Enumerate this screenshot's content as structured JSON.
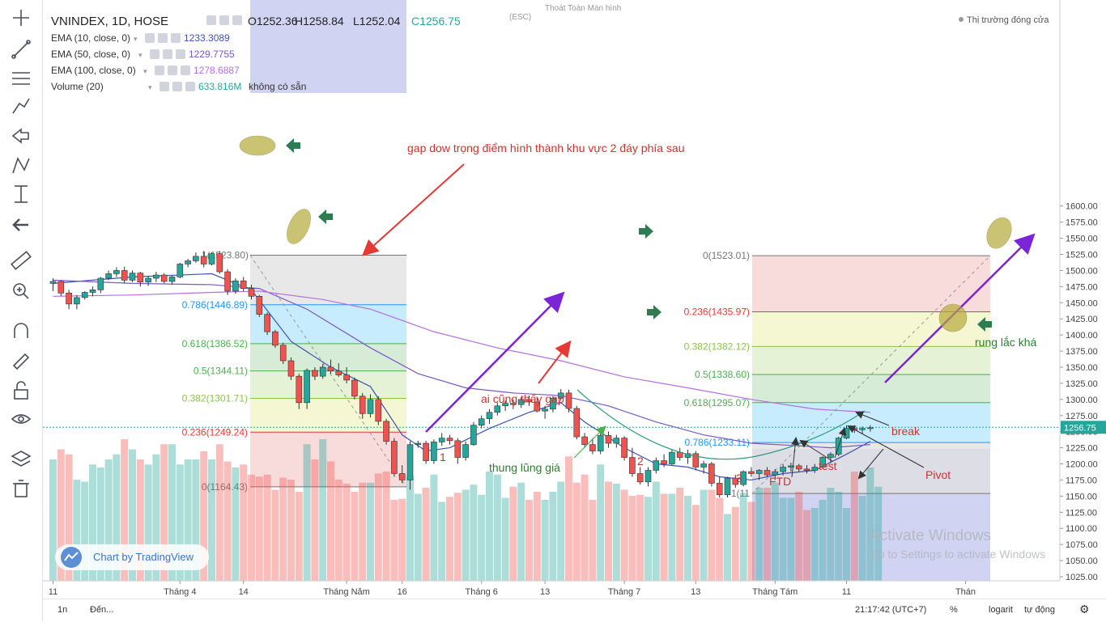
{
  "colors": {
    "up": "#26a69a",
    "down": "#ef5350",
    "ema10": "#3f51b5",
    "ema50": "#7b58c4",
    "ema100": "#b56fe0",
    "accent": "#7b24d8"
  },
  "header": {
    "symbol": "VNINDEX, 1D, HOSE",
    "open": "O1252.36",
    "high": "H1258.84",
    "low": "L1252.04",
    "close": "C1256.75",
    "market_status": "Thị trường đóng cửa",
    "fullscreen_hint": "Thoát Toàn Màn hình",
    "fullscreen_key": "(ESC)",
    "indicators": [
      {
        "label": "EMA (10, close, 0)",
        "value": "1233.3089",
        "color": "#3f51b5"
      },
      {
        "label": "EMA (50, close, 0)",
        "value": "1229.7755",
        "color": "#7b58c4"
      },
      {
        "label": "EMA (100, close, 0)",
        "value": "1278.6887",
        "color": "#b56fe0"
      },
      {
        "label": "Volume (20)",
        "value": "633.816M",
        "extra": "không có sẵn",
        "color": "#26a69a"
      }
    ]
  },
  "chart_data": {
    "type": "candlestick",
    "ylim": [
      1015,
      1615
    ],
    "y_ticks": [
      1025,
      1050,
      1075,
      1100,
      1125,
      1150,
      1175,
      1200,
      1225,
      1250,
      1275,
      1300,
      1325,
      1350,
      1375,
      1400,
      1425,
      1450,
      1475,
      1500,
      1525,
      1550,
      1575,
      1600
    ],
    "last_price": "1256.75",
    "x_ticks": [
      "11",
      "Tháng 4",
      "14",
      "Tháng Năm",
      "16",
      "Tháng 6",
      "13",
      "Tháng 7",
      "13",
      "Tháng Tám",
      "11",
      "Thán"
    ],
    "x_tick_index": [
      0,
      16,
      24,
      37,
      44,
      54,
      62,
      72,
      81,
      91,
      100,
      115
    ],
    "candles": [
      [
        1480,
        1488,
        1468,
        1483
      ],
      [
        1483,
        1485,
        1460,
        1465
      ],
      [
        1465,
        1470,
        1440,
        1448
      ],
      [
        1448,
        1462,
        1440,
        1458
      ],
      [
        1458,
        1468,
        1455,
        1466
      ],
      [
        1466,
        1475,
        1460,
        1470
      ],
      [
        1470,
        1490,
        1465,
        1488
      ],
      [
        1488,
        1500,
        1485,
        1495
      ],
      [
        1495,
        1505,
        1490,
        1500
      ],
      [
        1500,
        1506,
        1480,
        1485
      ],
      [
        1485,
        1500,
        1482,
        1496
      ],
      [
        1496,
        1498,
        1475,
        1482
      ],
      [
        1482,
        1492,
        1476,
        1488
      ],
      [
        1488,
        1498,
        1482,
        1493
      ],
      [
        1493,
        1496,
        1480,
        1483
      ],
      [
        1483,
        1492,
        1478,
        1490
      ],
      [
        1490,
        1512,
        1488,
        1510
      ],
      [
        1510,
        1518,
        1505,
        1515
      ],
      [
        1515,
        1528,
        1512,
        1522
      ],
      [
        1522,
        1530,
        1505,
        1510
      ],
      [
        1510,
        1528,
        1508,
        1526
      ],
      [
        1526,
        1530,
        1495,
        1498
      ],
      [
        1498,
        1502,
        1462,
        1468
      ],
      [
        1468,
        1488,
        1464,
        1484
      ],
      [
        1484,
        1490,
        1468,
        1472
      ],
      [
        1472,
        1478,
        1455,
        1460
      ],
      [
        1460,
        1462,
        1428,
        1432
      ],
      [
        1432,
        1435,
        1400,
        1405
      ],
      [
        1405,
        1408,
        1380,
        1384
      ],
      [
        1384,
        1388,
        1355,
        1360
      ],
      [
        1360,
        1365,
        1330,
        1336
      ],
      [
        1336,
        1340,
        1285,
        1295
      ],
      [
        1295,
        1348,
        1285,
        1345
      ],
      [
        1345,
        1350,
        1330,
        1336
      ],
      [
        1336,
        1355,
        1332,
        1350
      ],
      [
        1350,
        1362,
        1340,
        1344
      ],
      [
        1344,
        1356,
        1335,
        1338
      ],
      [
        1338,
        1350,
        1325,
        1330
      ],
      [
        1330,
        1334,
        1300,
        1305
      ],
      [
        1305,
        1310,
        1270,
        1278
      ],
      [
        1278,
        1308,
        1272,
        1300
      ],
      [
        1300,
        1305,
        1260,
        1266
      ],
      [
        1266,
        1270,
        1230,
        1235
      ],
      [
        1235,
        1240,
        1180,
        1185
      ],
      [
        1185,
        1198,
        1170,
        1175
      ],
      [
        1175,
        1235,
        1160,
        1230
      ],
      [
        1230,
        1236,
        1225,
        1232
      ],
      [
        1232,
        1236,
        1200,
        1205
      ],
      [
        1205,
        1238,
        1200,
        1234
      ],
      [
        1234,
        1248,
        1228,
        1240
      ],
      [
        1240,
        1245,
        1230,
        1236
      ],
      [
        1236,
        1240,
        1200,
        1210
      ],
      [
        1210,
        1235,
        1205,
        1230
      ],
      [
        1230,
        1265,
        1228,
        1260
      ],
      [
        1260,
        1275,
        1255,
        1270
      ],
      [
        1270,
        1285,
        1262,
        1280
      ],
      [
        1280,
        1295,
        1275,
        1290
      ],
      [
        1290,
        1298,
        1282,
        1294
      ],
      [
        1294,
        1300,
        1285,
        1292
      ],
      [
        1292,
        1303,
        1287,
        1300
      ],
      [
        1300,
        1306,
        1290,
        1296
      ],
      [
        1296,
        1304,
        1280,
        1282
      ],
      [
        1282,
        1290,
        1270,
        1285
      ],
      [
        1285,
        1305,
        1280,
        1302
      ],
      [
        1302,
        1316,
        1298,
        1310
      ],
      [
        1310,
        1315,
        1280,
        1286
      ],
      [
        1286,
        1290,
        1238,
        1242
      ],
      [
        1242,
        1248,
        1225,
        1230
      ],
      [
        1230,
        1240,
        1215,
        1220
      ],
      [
        1220,
        1248,
        1215,
        1244
      ],
      [
        1244,
        1250,
        1225,
        1232
      ],
      [
        1232,
        1245,
        1225,
        1240
      ],
      [
        1240,
        1243,
        1205,
        1210
      ],
      [
        1210,
        1225,
        1180,
        1185
      ],
      [
        1185,
        1195,
        1168,
        1172
      ],
      [
        1172,
        1195,
        1165,
        1190
      ],
      [
        1190,
        1210,
        1185,
        1205
      ],
      [
        1205,
        1215,
        1195,
        1200
      ],
      [
        1200,
        1222,
        1198,
        1218
      ],
      [
        1218,
        1225,
        1205,
        1210
      ],
      [
        1210,
        1222,
        1200,
        1216
      ],
      [
        1216,
        1220,
        1190,
        1195
      ],
      [
        1195,
        1205,
        1185,
        1200
      ],
      [
        1200,
        1203,
        1165,
        1170
      ],
      [
        1170,
        1180,
        1148,
        1152
      ],
      [
        1152,
        1180,
        1148,
        1178
      ],
      [
        1178,
        1183,
        1163,
        1168
      ],
      [
        1168,
        1190,
        1165,
        1188
      ],
      [
        1188,
        1195,
        1180,
        1185
      ],
      [
        1185,
        1192,
        1175,
        1190
      ],
      [
        1190,
        1195,
        1180,
        1183
      ],
      [
        1183,
        1192,
        1175,
        1188
      ],
      [
        1188,
        1200,
        1182,
        1195
      ],
      [
        1195,
        1202,
        1188,
        1197
      ],
      [
        1197,
        1200,
        1188,
        1192
      ],
      [
        1192,
        1198,
        1185,
        1190
      ],
      [
        1190,
        1200,
        1186,
        1195
      ],
      [
        1195,
        1212,
        1192,
        1210
      ],
      [
        1210,
        1218,
        1202,
        1215
      ],
      [
        1215,
        1242,
        1212,
        1240
      ],
      [
        1240,
        1260,
        1238,
        1255
      ],
      [
        1255,
        1260,
        1248,
        1253
      ],
      [
        1253,
        1258,
        1246,
        1255
      ],
      [
        1255,
        1260,
        1250,
        1256
      ]
    ],
    "ema_lines": [
      {
        "name": "EMA 10",
        "color": "#3f51b5",
        "points": [
          [
            0,
            1480
          ],
          [
            10,
            1490
          ],
          [
            20,
            1495
          ],
          [
            25,
            1470
          ],
          [
            30,
            1390
          ],
          [
            35,
            1350
          ],
          [
            40,
            1320
          ],
          [
            44,
            1245
          ],
          [
            47,
            1220
          ],
          [
            50,
            1225
          ],
          [
            55,
            1255
          ],
          [
            60,
            1280
          ],
          [
            64,
            1295
          ],
          [
            67,
            1265
          ],
          [
            72,
            1225
          ],
          [
            76,
            1200
          ],
          [
            80,
            1195
          ],
          [
            84,
            1180
          ],
          [
            88,
            1175
          ],
          [
            92,
            1185
          ],
          [
            96,
            1190
          ],
          [
            100,
            1215
          ],
          [
            103,
            1235
          ]
        ]
      },
      {
        "name": "EMA 50",
        "color": "#7b58c4",
        "points": [
          [
            0,
            1485
          ],
          [
            10,
            1480
          ],
          [
            20,
            1478
          ],
          [
            26,
            1472
          ],
          [
            32,
            1440
          ],
          [
            40,
            1380
          ],
          [
            46,
            1340
          ],
          [
            52,
            1318
          ],
          [
            58,
            1310
          ],
          [
            64,
            1306
          ],
          [
            70,
            1290
          ],
          [
            76,
            1265
          ],
          [
            82,
            1245
          ],
          [
            88,
            1232
          ],
          [
            94,
            1228
          ],
          [
            98,
            1225
          ],
          [
            103,
            1230
          ]
        ]
      },
      {
        "name": "EMA 100",
        "color": "#b56fe0",
        "points": [
          [
            0,
            1460
          ],
          [
            10,
            1462
          ],
          [
            20,
            1466
          ],
          [
            26,
            1468
          ],
          [
            34,
            1455
          ],
          [
            40,
            1440
          ],
          [
            48,
            1405
          ],
          [
            56,
            1380
          ],
          [
            64,
            1360
          ],
          [
            72,
            1335
          ],
          [
            80,
            1318
          ],
          [
            88,
            1300
          ],
          [
            96,
            1285
          ],
          [
            103,
            1280
          ]
        ]
      }
    ],
    "volume": [
      120,
      130,
      125,
      100,
      98,
      115,
      112,
      120,
      125,
      140,
      130,
      120,
      115,
      125,
      135,
      135,
      115,
      120,
      120,
      128,
      120,
      135,
      118,
      112,
      115,
      105,
      103,
      105,
      90,
      102,
      100,
      88,
      135,
      120,
      140,
      118,
      100,
      96,
      88,
      97,
      97,
      106,
      108,
      80,
      81,
      104,
      86,
      92,
      105,
      78,
      83,
      87,
      90,
      95,
      85,
      108,
      105,
      82,
      93,
      97,
      80,
      88,
      80,
      88,
      98,
      123,
      97,
      105,
      80,
      115,
      98,
      96,
      90,
      84,
      85,
      83,
      98,
      86,
      86,
      92,
      84,
      75,
      90,
      90,
      82,
      66,
      73,
      87,
      78,
      92,
      92,
      97,
      82,
      82,
      88,
      70,
      72,
      80,
      92,
      88,
      72,
      108,
      84,
      112,
      93
    ]
  },
  "fib_left": {
    "levels": [
      {
        "ratio": "0.786(1446.89)",
        "price": 1446.89,
        "color": "#2196f3",
        "fill": "#b3e5fc"
      },
      {
        "ratio": "0.618(1386.52)",
        "price": 1386.52,
        "color": "#4caf50",
        "fill": "#c8e6c9"
      },
      {
        "ratio": "0.5(1344.11)",
        "price": 1344.11,
        "color": "#4caf50",
        "fill": "#dcedc8"
      },
      {
        "ratio": "0.382(1301.71)",
        "price": 1301.71,
        "color": "#8bc34a",
        "fill": "#f0f4c3"
      },
      {
        "ratio": "0.236(1249.24)",
        "price": 1249.24,
        "color": "#e53935",
        "fill": "#f5cfcf"
      },
      {
        "ratio": "0(1164.43)",
        "price": 1164.43,
        "color": "#757575"
      }
    ],
    "top_label": "1(1523.80)",
    "top_price": 1523.8
  },
  "fib_right": {
    "levels": [
      {
        "ratio": "0(1523.01)",
        "price": 1523.01,
        "color": "#757575",
        "fill": "#f5cfcf"
      },
      {
        "ratio": "0.236(1435.97)",
        "price": 1435.97,
        "color": "#e53935",
        "fill": "#f0f4c3"
      },
      {
        "ratio": "0.382(1382.12)",
        "price": 1382.12,
        "color": "#8bc34a",
        "fill": "#dcedc8"
      },
      {
        "ratio": "0.5(1338.60)",
        "price": 1338.6,
        "color": "#4caf50",
        "fill": "#c8e6c9"
      },
      {
        "ratio": "0.618(1295.07)",
        "price": 1295.07,
        "color": "#4caf50",
        "fill": "#b3e5fc"
      },
      {
        "ratio": "0.786(1233.11)",
        "price": 1233.11,
        "color": "#2196f3",
        "fill": "#e0e0e0"
      }
    ],
    "bottom_label": "1(11",
    "bottom_price": 1154
  },
  "annotations": {
    "gap_dow": "gap dow trọng điểm hình thành khu vực 2 đáy phía sau",
    "ai_cung": "ai cũng thấy gap",
    "thung_lung": "thung lũng giá",
    "rung_lac": "rung lắc khá",
    "ftd": "FTD",
    "test": "test",
    "break": "break",
    "pivot": "Pivot",
    "n1": "1",
    "n2": "2",
    "n3": "3"
  },
  "watermark": {
    "title": "Activate Windows",
    "sub": "Go to Settings to activate Windows"
  },
  "logo": "Chart by TradingView",
  "bottom_bar": {
    "range_1n": "1n",
    "range_goto": "Đến...",
    "time": "21:17:42 (UTC+7)",
    "percent": "%",
    "log": "logarit",
    "auto": "tự động"
  }
}
